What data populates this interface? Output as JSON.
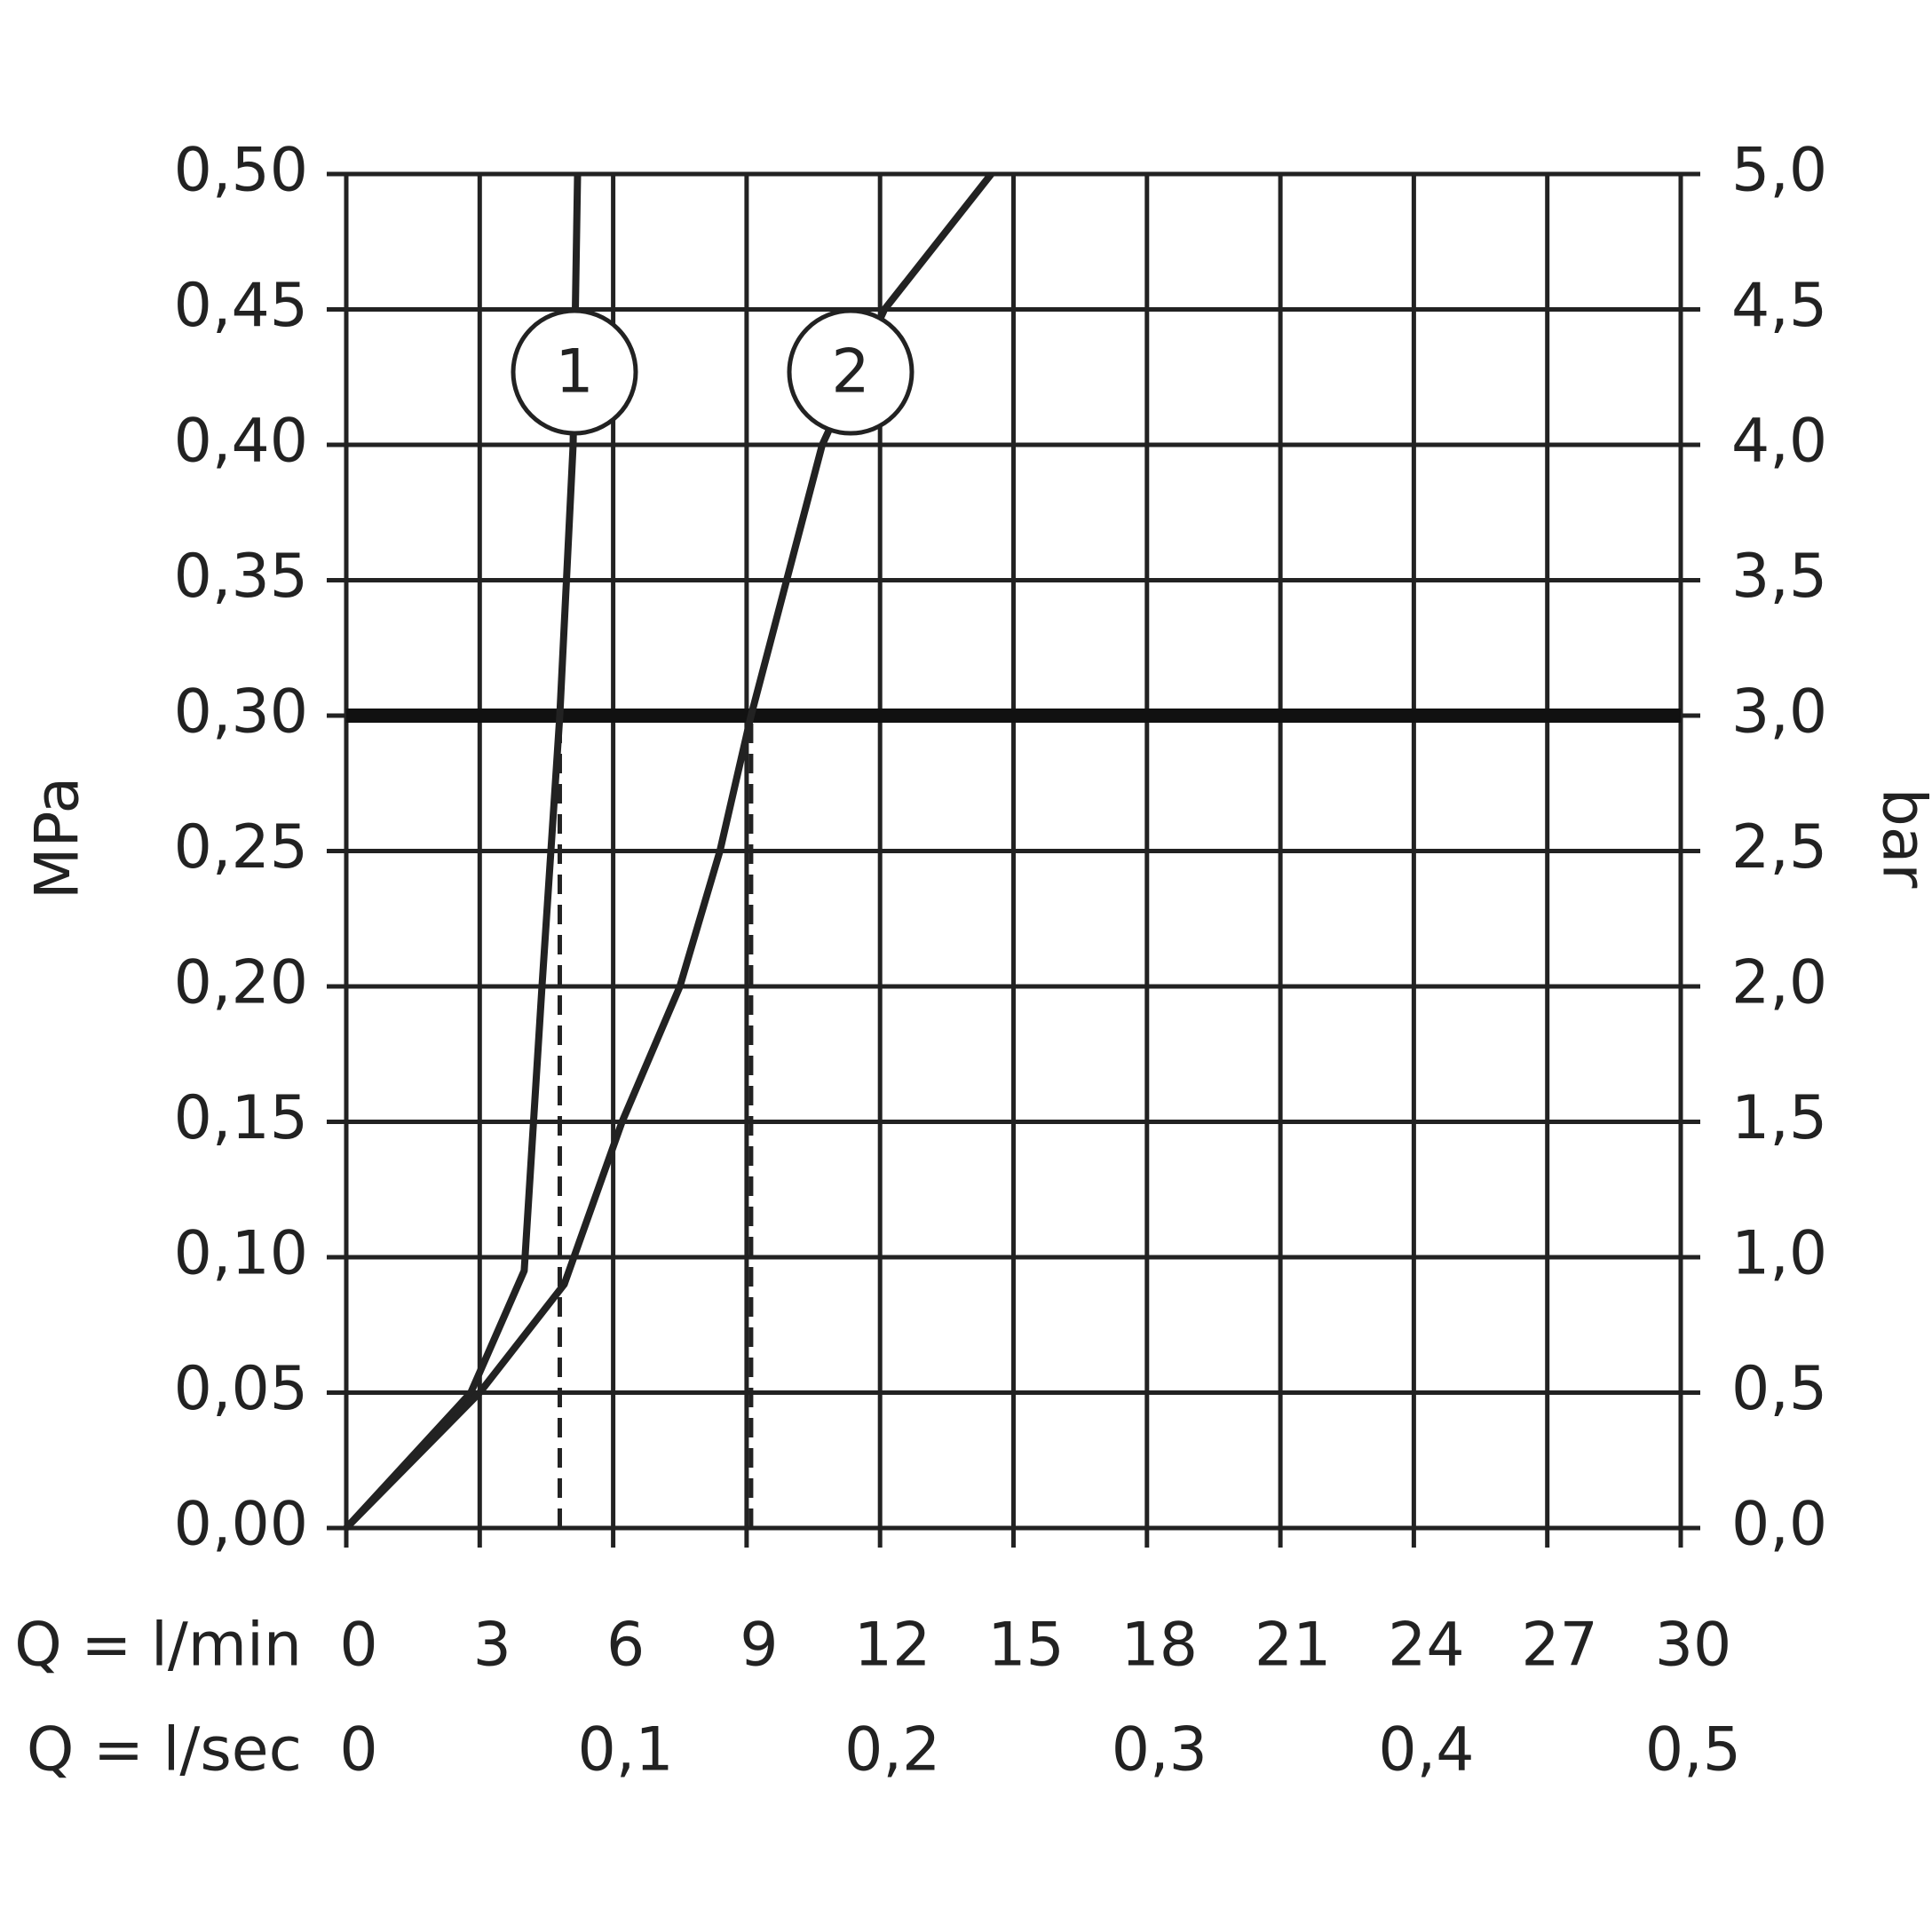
{
  "chart_data": {
    "type": "line",
    "y_label": "MPa",
    "y2_label": "bar",
    "x_label": "Q = l/min",
    "x2_label": "Q = l/sec",
    "xlim": [
      0,
      30
    ],
    "xticks": [
      0,
      3,
      6,
      9,
      12,
      15,
      18,
      21,
      24,
      27,
      30
    ],
    "x2lim": [
      0,
      0.5
    ],
    "x2ticks": [
      0,
      {
        "value": 0.1,
        "label": "0,1"
      },
      {
        "value": 0.2,
        "label": "0,2"
      },
      {
        "value": 0.3,
        "label": "0,3"
      },
      {
        "value": 0.4,
        "label": "0,4"
      },
      {
        "value": 0.5,
        "label": "0,5"
      }
    ],
    "ylim": [
      0,
      0.5
    ],
    "yticks": [
      {
        "value": 0,
        "label": "0,00"
      },
      {
        "value": 0.05,
        "label": "0,05"
      },
      {
        "value": 0.1,
        "label": "0,10"
      },
      {
        "value": 0.15,
        "label": "0,15"
      },
      {
        "value": 0.2,
        "label": "0,20"
      },
      {
        "value": 0.25,
        "label": "0,25"
      },
      {
        "value": 0.3,
        "label": "0,30"
      },
      {
        "value": 0.35,
        "label": "0,35"
      },
      {
        "value": 0.4,
        "label": "0,40"
      },
      {
        "value": 0.45,
        "label": "0,45"
      },
      {
        "value": 0.5,
        "label": "0,50"
      }
    ],
    "y2lim": [
      0,
      5
    ],
    "y2ticks": [
      {
        "value": 0,
        "label": "0,0"
      },
      {
        "value": 0.5,
        "label": "0,5"
      },
      {
        "value": 1,
        "label": "1,0"
      },
      {
        "value": 1.5,
        "label": "1,5"
      },
      {
        "value": 2,
        "label": "2,0"
      },
      {
        "value": 2.5,
        "label": "2,5"
      },
      {
        "value": 3,
        "label": "3,0"
      },
      {
        "value": 3.5,
        "label": "3,5"
      },
      {
        "value": 4,
        "label": "4,0"
      },
      {
        "value": 4.5,
        "label": "4,5"
      },
      {
        "value": 5,
        "label": "5,0"
      }
    ],
    "grid": true,
    "reference_y": 0.3,
    "dashed_x": [
      4.8,
      9.1
    ],
    "series": [
      {
        "name": "1",
        "color": "#222222",
        "x": [
          0,
          2.8,
          4.0,
          4.4,
          4.8,
          5.1,
          5.2
        ],
        "values": [
          0,
          0.05,
          0.095,
          0.2,
          0.3,
          0.4,
          0.5
        ]
      },
      {
        "name": "2",
        "color": "#222222",
        "x": [
          0,
          3.0,
          4.9,
          6.2,
          7.5,
          8.4,
          9.1,
          9.9,
          10.7,
          12.1,
          14.5
        ],
        "values": [
          0,
          0.05,
          0.09,
          0.15,
          0.2,
          0.25,
          0.3,
          0.35,
          0.4,
          0.45,
          0.5
        ]
      }
    ]
  }
}
